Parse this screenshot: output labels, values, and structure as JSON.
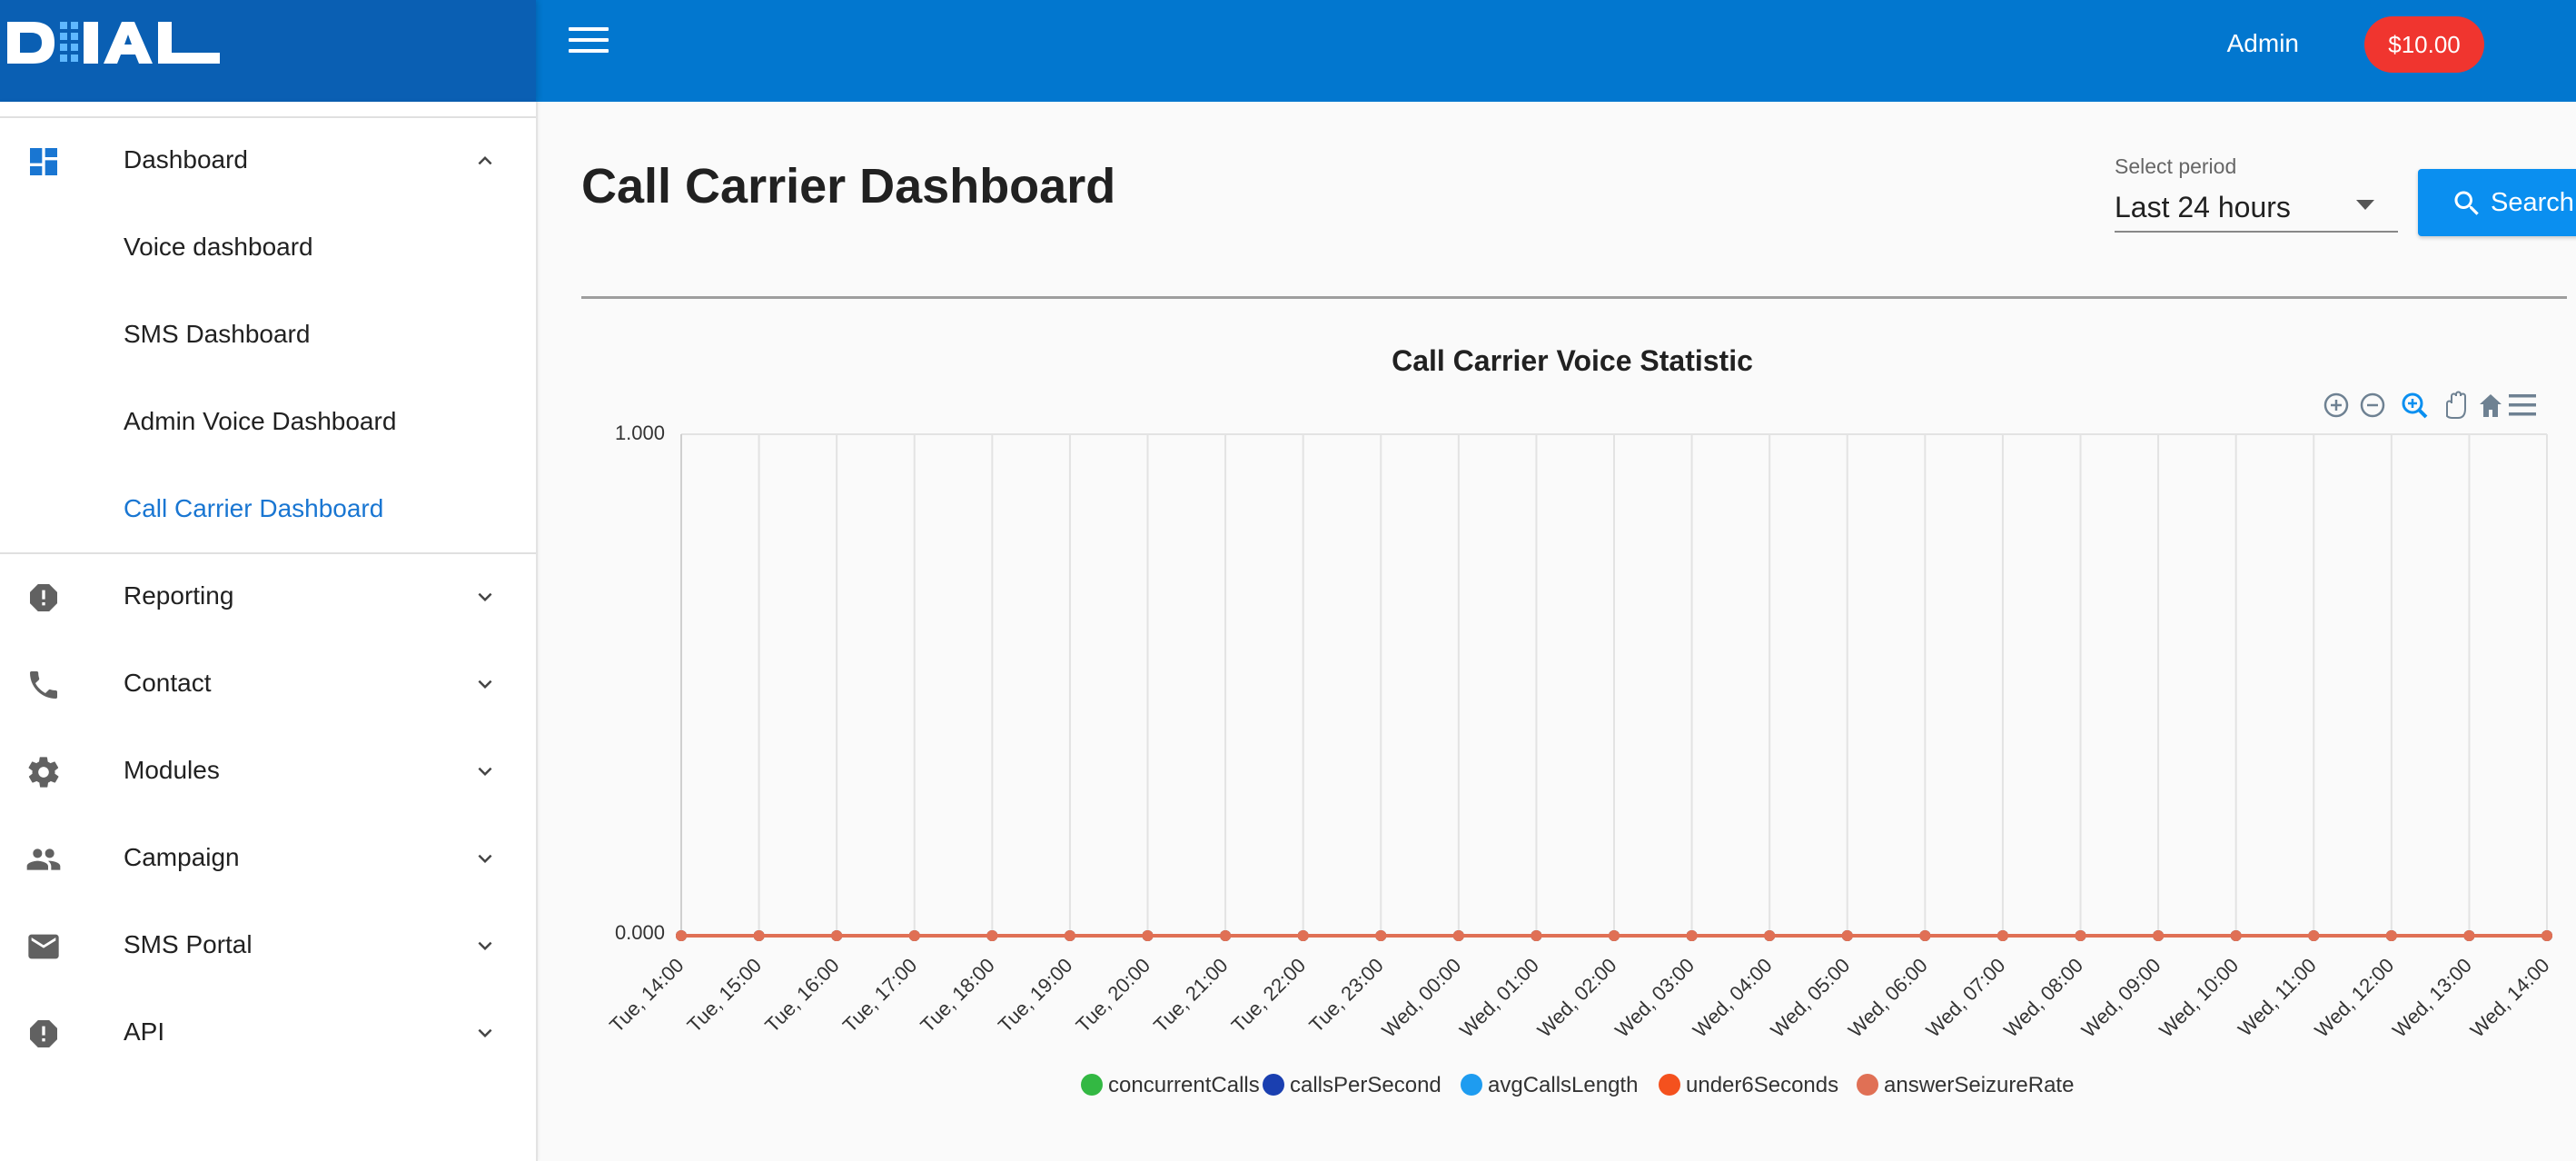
{
  "header": {
    "logo_text": "DIAL",
    "user_label": "Admin",
    "balance": "$10.00"
  },
  "sidebar": {
    "items": [
      {
        "label": "Dashboard",
        "icon": "dashboard-icon",
        "expanded": true
      },
      {
        "label": "Reporting",
        "icon": "alert-circle-icon",
        "expanded": false
      },
      {
        "label": "Contact",
        "icon": "phone-icon",
        "expanded": false
      },
      {
        "label": "Modules",
        "icon": "gear-icon",
        "expanded": false
      },
      {
        "label": "Campaign",
        "icon": "people-icon",
        "expanded": false
      },
      {
        "label": "SMS Portal",
        "icon": "mail-icon",
        "expanded": false
      },
      {
        "label": "API",
        "icon": "alert-circle-icon",
        "expanded": false
      }
    ],
    "dashboard_subitems": [
      {
        "label": "Voice dashboard"
      },
      {
        "label": "SMS Dashboard"
      },
      {
        "label": "Admin Voice Dashboard"
      },
      {
        "label": "Call Carrier Dashboard",
        "active": true
      }
    ]
  },
  "main": {
    "title": "Call Carrier Dashboard",
    "period": {
      "label": "Select period",
      "value": "Last 24 hours"
    },
    "search_label": "Search"
  },
  "colors": {
    "topbar": "#0277cf",
    "accent": "#1976d2",
    "badge": "#f0352f"
  },
  "chart_data": {
    "type": "line",
    "title": "Call Carrier Voice Statistic",
    "x": [
      "Tue, 14:00",
      "Tue, 15:00",
      "Tue, 16:00",
      "Tue, 17:00",
      "Tue, 18:00",
      "Tue, 19:00",
      "Tue, 20:00",
      "Tue, 21:00",
      "Tue, 22:00",
      "Tue, 23:00",
      "Wed, 00:00",
      "Wed, 01:00",
      "Wed, 02:00",
      "Wed, 03:00",
      "Wed, 04:00",
      "Wed, 05:00",
      "Wed, 06:00",
      "Wed, 07:00",
      "Wed, 08:00",
      "Wed, 09:00",
      "Wed, 10:00",
      "Wed, 11:00",
      "Wed, 12:00",
      "Wed, 13:00",
      "Wed, 14:00"
    ],
    "yticks": [
      "0.000",
      "1.000"
    ],
    "ylim": [
      0,
      1
    ],
    "grid": true,
    "legend_position": "bottom",
    "series": [
      {
        "name": "concurrentCalls",
        "color": "#33b843",
        "values": [
          0,
          0,
          0,
          0,
          0,
          0,
          0,
          0,
          0,
          0,
          0,
          0,
          0,
          0,
          0,
          0,
          0,
          0,
          0,
          0,
          0,
          0,
          0,
          0,
          0
        ]
      },
      {
        "name": "callsPerSecond",
        "color": "#1a3fb0",
        "values": [
          0,
          0,
          0,
          0,
          0,
          0,
          0,
          0,
          0,
          0,
          0,
          0,
          0,
          0,
          0,
          0,
          0,
          0,
          0,
          0,
          0,
          0,
          0,
          0,
          0
        ]
      },
      {
        "name": "avgCallsLength",
        "color": "#1e9cf0",
        "values": [
          0,
          0,
          0,
          0,
          0,
          0,
          0,
          0,
          0,
          0,
          0,
          0,
          0,
          0,
          0,
          0,
          0,
          0,
          0,
          0,
          0,
          0,
          0,
          0,
          0
        ]
      },
      {
        "name": "under6Seconds",
        "color": "#f4511e",
        "values": [
          0,
          0,
          0,
          0,
          0,
          0,
          0,
          0,
          0,
          0,
          0,
          0,
          0,
          0,
          0,
          0,
          0,
          0,
          0,
          0,
          0,
          0,
          0,
          0,
          0
        ]
      },
      {
        "name": "answerSeizureRate",
        "color": "#e07055",
        "values": [
          0,
          0,
          0,
          0,
          0,
          0,
          0,
          0,
          0,
          0,
          0,
          0,
          0,
          0,
          0,
          0,
          0,
          0,
          0,
          0,
          0,
          0,
          0,
          0,
          0
        ]
      }
    ]
  }
}
